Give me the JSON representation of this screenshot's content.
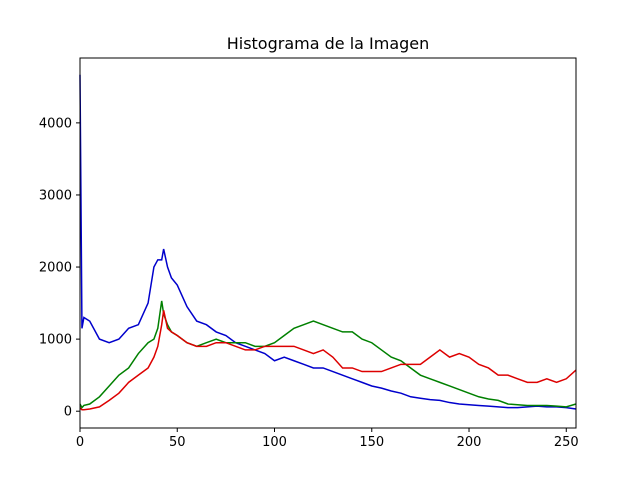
{
  "chart_data": {
    "type": "line",
    "title": "Histograma de la Imagen",
    "x": [
      0,
      1,
      2,
      5,
      10,
      15,
      20,
      25,
      30,
      35,
      38,
      40,
      42,
      43,
      45,
      47,
      50,
      55,
      60,
      65,
      70,
      75,
      80,
      85,
      90,
      95,
      100,
      105,
      110,
      115,
      120,
      125,
      130,
      135,
      140,
      145,
      150,
      155,
      160,
      165,
      170,
      175,
      180,
      185,
      190,
      195,
      200,
      205,
      210,
      215,
      220,
      225,
      230,
      235,
      240,
      245,
      250,
      255
    ],
    "series": [
      {
        "color": "#0000cc",
        "values": [
          4667,
          1150,
          1300,
          1250,
          1000,
          950,
          1000,
          1150,
          1200,
          1500,
          2000,
          2100,
          2100,
          2250,
          2000,
          1850,
          1750,
          1450,
          1250,
          1200,
          1100,
          1050,
          950,
          900,
          850,
          800,
          700,
          750,
          700,
          650,
          600,
          600,
          550,
          500,
          450,
          400,
          350,
          320,
          280,
          250,
          200,
          180,
          160,
          150,
          120,
          100,
          90,
          80,
          70,
          60,
          50,
          50,
          60,
          70,
          60,
          60,
          50,
          30
        ]
      },
      {
        "color": "#008000",
        "values": [
          100,
          50,
          80,
          100,
          200,
          350,
          500,
          600,
          800,
          950,
          1000,
          1150,
          1530,
          1350,
          1200,
          1100,
          1050,
          950,
          900,
          950,
          1000,
          950,
          950,
          950,
          900,
          900,
          950,
          1050,
          1150,
          1200,
          1250,
          1200,
          1150,
          1100,
          1100,
          1000,
          950,
          850,
          750,
          700,
          600,
          500,
          450,
          400,
          350,
          300,
          250,
          200,
          170,
          150,
          100,
          90,
          80,
          80,
          80,
          70,
          60,
          100
        ]
      },
      {
        "color": "#dd0000",
        "values": [
          50,
          20,
          20,
          30,
          60,
          150,
          250,
          400,
          500,
          600,
          750,
          900,
          1200,
          1400,
          1150,
          1100,
          1050,
          950,
          900,
          900,
          950,
          950,
          900,
          850,
          850,
          900,
          900,
          900,
          900,
          850,
          800,
          850,
          750,
          600,
          600,
          550,
          550,
          550,
          600,
          650,
          650,
          650,
          750,
          850,
          750,
          800,
          750,
          650,
          600,
          500,
          500,
          450,
          400,
          400,
          450,
          400,
          450,
          570
        ]
      }
    ],
    "xlim": [
      0,
      255
    ],
    "ylim": [
      -233,
      4900
    ],
    "xticks": [
      0,
      50,
      100,
      150,
      200,
      250
    ],
    "yticks": [
      0,
      1000,
      2000,
      3000,
      4000
    ]
  }
}
